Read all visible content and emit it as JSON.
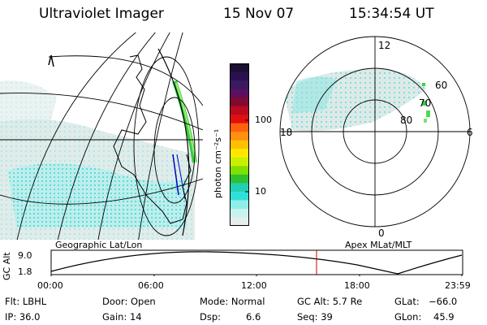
{
  "header": {
    "instrument": "Ultraviolet Imager",
    "date": "15 Nov 07",
    "time": "15:34:54 UT"
  },
  "colorbar": {
    "unit_label": "photon cm⁻²s⁻¹",
    "ticks": [
      "100",
      "10"
    ],
    "colors": [
      "#1a1030",
      "#2a1050",
      "#3a1a60",
      "#5a1060",
      "#800a30",
      "#b80a20",
      "#e01010",
      "#ff6010",
      "#ff9010",
      "#ffc000",
      "#ffe800",
      "#c8f000",
      "#80e000",
      "#30c030",
      "#20d0b0",
      "#30e0d8",
      "#90eee8",
      "#c8f2ee",
      "#e4eeec"
    ]
  },
  "left_map": {
    "caption": "Geographic Lat/Lon"
  },
  "right_map": {
    "caption": "Apex  MLat/MLT",
    "mlt_labels": {
      "top": "12",
      "left": "18",
      "right": "6",
      "bottom": "0"
    },
    "lat_labels": [
      "60",
      "70",
      "80"
    ]
  },
  "altitude_plot": {
    "ylabel": "GC Alt",
    "yticks": [
      "9.0",
      "1.8"
    ],
    "xticks": [
      "00:00",
      "06:00",
      "12:00",
      "18:00",
      "23:59"
    ]
  },
  "status": {
    "flt": "Flt: LBHL",
    "ip": "IP: 36.0",
    "door": "Door: Open",
    "gain": "Gain: 14",
    "mode": "Mode: Normal",
    "dsp_label": "Dsp:",
    "dsp_value": "6.6",
    "gc_alt": "GC Alt: 5.7 Re",
    "seq": "Seq: 39",
    "glat_label": "GLat:",
    "glat_value": "−66.0",
    "glon_label": "GLon:",
    "glon_value": "45.9"
  }
}
